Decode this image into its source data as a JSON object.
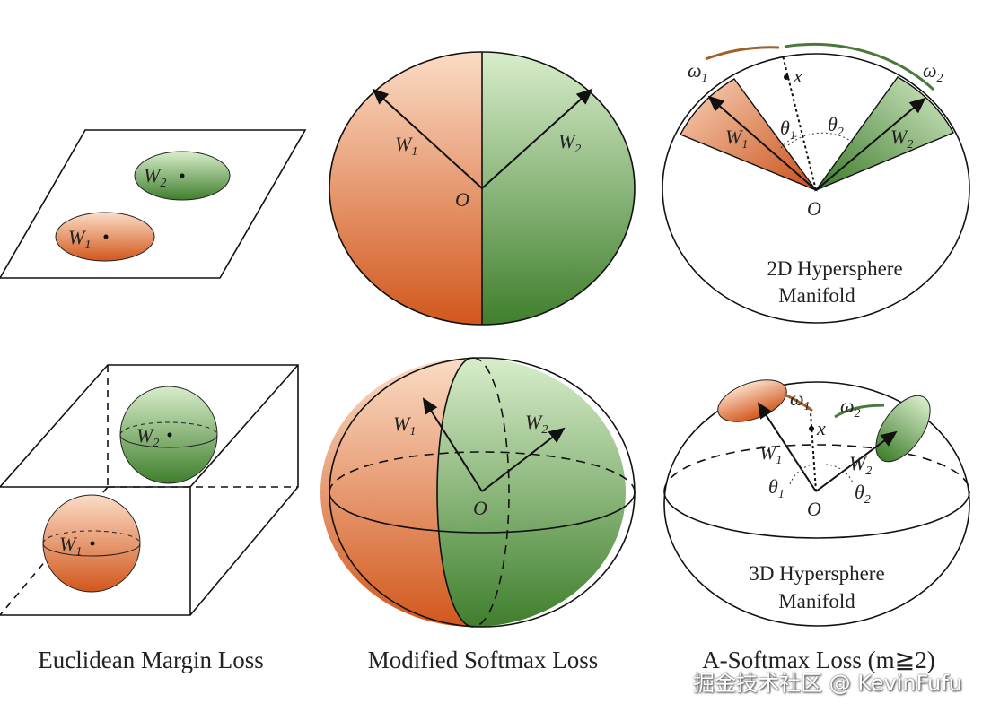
{
  "colors": {
    "orange": "#d9662a",
    "orange_light": "#f7d2b8",
    "green": "#4a8a35",
    "green_light": "#d5ebc8"
  },
  "panels": [
    {
      "caption": "Euclidean Margin Loss",
      "top": {
        "w1": "W",
        "w1_sub": "1",
        "w2": "W",
        "w2_sub": "2"
      },
      "bottom": {
        "w1": "W",
        "w1_sub": "1",
        "w2": "W",
        "w2_sub": "2"
      }
    },
    {
      "caption": "Modified Softmax Loss",
      "top": {
        "w1": "W",
        "w1_sub": "1",
        "w2": "W",
        "w2_sub": "2",
        "origin": "O"
      },
      "bottom": {
        "w1": "W",
        "w1_sub": "1",
        "w2": "W",
        "w2_sub": "2",
        "origin": "O"
      }
    },
    {
      "caption": "A-Softmax Loss (m≧2)",
      "top": {
        "w1": "W",
        "w1_sub": "1",
        "w2": "W",
        "w2_sub": "2",
        "origin": "O",
        "x": "x",
        "omega1": "ω",
        "omega1_sub": "1",
        "omega2": "ω",
        "omega2_sub": "2",
        "theta1": "θ",
        "theta1_sub": "1",
        "theta2": "θ",
        "theta2_sub": "2",
        "manifold_line1": "2D Hypersphere",
        "manifold_line2": "Manifold"
      },
      "bottom": {
        "w1": "W",
        "w1_sub": "1",
        "w2": "W",
        "w2_sub": "2",
        "origin": "O",
        "x": "x",
        "omega1": "ω",
        "omega1_sub": "1",
        "omega2": "ω",
        "omega2_sub": "2",
        "theta1": "θ",
        "theta1_sub": "1",
        "theta2": "θ",
        "theta2_sub": "2",
        "manifold_line1": "3D Hypersphere",
        "manifold_line2": "Manifold"
      }
    }
  ],
  "watermark": "掘金技术社区 @ KevinFufu"
}
